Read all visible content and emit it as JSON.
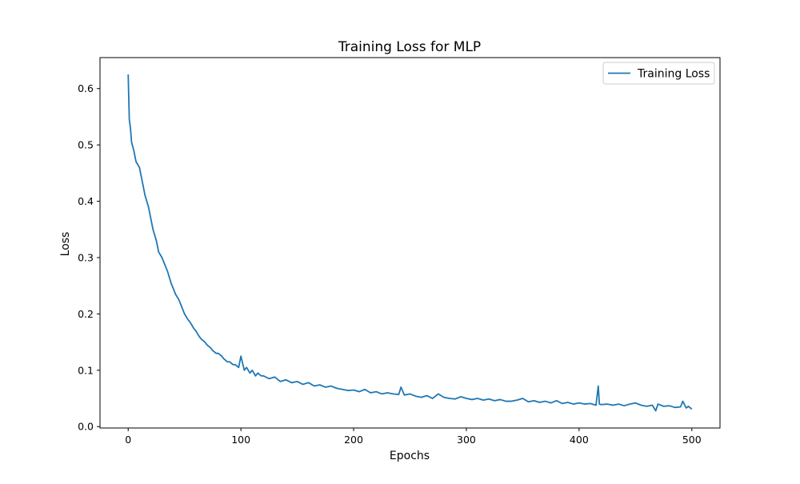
{
  "chart_data": {
    "type": "line",
    "title": "Training Loss for MLP",
    "xlabel": "Epochs",
    "ylabel": "Loss",
    "xlim": [
      -25,
      525
    ],
    "ylim": [
      -0.0025,
      0.655
    ],
    "xticks": [
      0,
      100,
      200,
      300,
      400,
      500
    ],
    "xtick_labels": [
      "0",
      "100",
      "200",
      "300",
      "400",
      "500"
    ],
    "yticks": [
      0.0,
      0.1,
      0.2,
      0.3,
      0.4,
      0.5,
      0.6
    ],
    "ytick_labels": [
      "0.0",
      "0.1",
      "0.2",
      "0.3",
      "0.4",
      "0.5",
      "0.6"
    ],
    "grid": false,
    "legend_position": "top-right",
    "series": [
      {
        "name": "Training Loss",
        "color": "#1f77b4",
        "x": [
          0,
          1,
          2,
          3,
          5,
          7,
          10,
          13,
          15,
          18,
          20,
          22,
          25,
          27,
          30,
          33,
          35,
          38,
          40,
          42,
          45,
          48,
          50,
          53,
          55,
          58,
          60,
          63,
          65,
          68,
          70,
          73,
          75,
          78,
          80,
          83,
          85,
          88,
          90,
          93,
          95,
          98,
          100,
          103,
          105,
          108,
          110,
          113,
          115,
          118,
          120,
          125,
          130,
          135,
          140,
          145,
          150,
          155,
          160,
          165,
          170,
          175,
          180,
          185,
          190,
          195,
          200,
          205,
          210,
          215,
          220,
          225,
          230,
          235,
          240,
          242,
          245,
          250,
          255,
          260,
          265,
          270,
          275,
          280,
          285,
          290,
          295,
          300,
          305,
          310,
          315,
          320,
          325,
          330,
          335,
          340,
          345,
          350,
          355,
          360,
          365,
          370,
          375,
          380,
          385,
          390,
          395,
          400,
          405,
          410,
          415,
          417,
          418,
          420,
          425,
          430,
          435,
          440,
          445,
          450,
          455,
          460,
          465,
          468,
          470,
          475,
          480,
          485,
          490,
          492,
          495,
          497,
          500
        ],
        "values": [
          0.625,
          0.545,
          0.53,
          0.505,
          0.49,
          0.47,
          0.46,
          0.43,
          0.41,
          0.39,
          0.37,
          0.35,
          0.33,
          0.31,
          0.3,
          0.285,
          0.275,
          0.255,
          0.245,
          0.235,
          0.225,
          0.21,
          0.2,
          0.19,
          0.185,
          0.175,
          0.17,
          0.16,
          0.155,
          0.15,
          0.145,
          0.14,
          0.135,
          0.13,
          0.13,
          0.125,
          0.12,
          0.115,
          0.115,
          0.11,
          0.11,
          0.105,
          0.125,
          0.1,
          0.105,
          0.095,
          0.1,
          0.09,
          0.095,
          0.09,
          0.09,
          0.085,
          0.088,
          0.08,
          0.083,
          0.078,
          0.08,
          0.075,
          0.078,
          0.072,
          0.074,
          0.07,
          0.072,
          0.068,
          0.066,
          0.064,
          0.065,
          0.062,
          0.066,
          0.06,
          0.062,
          0.058,
          0.06,
          0.058,
          0.057,
          0.07,
          0.056,
          0.058,
          0.054,
          0.052,
          0.055,
          0.05,
          0.058,
          0.052,
          0.05,
          0.049,
          0.053,
          0.05,
          0.048,
          0.05,
          0.047,
          0.049,
          0.046,
          0.048,
          0.045,
          0.045,
          0.047,
          0.05,
          0.044,
          0.046,
          0.043,
          0.045,
          0.042,
          0.046,
          0.041,
          0.043,
          0.04,
          0.042,
          0.04,
          0.041,
          0.038,
          0.072,
          0.04,
          0.039,
          0.04,
          0.038,
          0.04,
          0.037,
          0.04,
          0.042,
          0.038,
          0.036,
          0.038,
          0.028,
          0.04,
          0.036,
          0.037,
          0.034,
          0.035,
          0.045,
          0.033,
          0.036,
          0.031
        ]
      }
    ]
  }
}
